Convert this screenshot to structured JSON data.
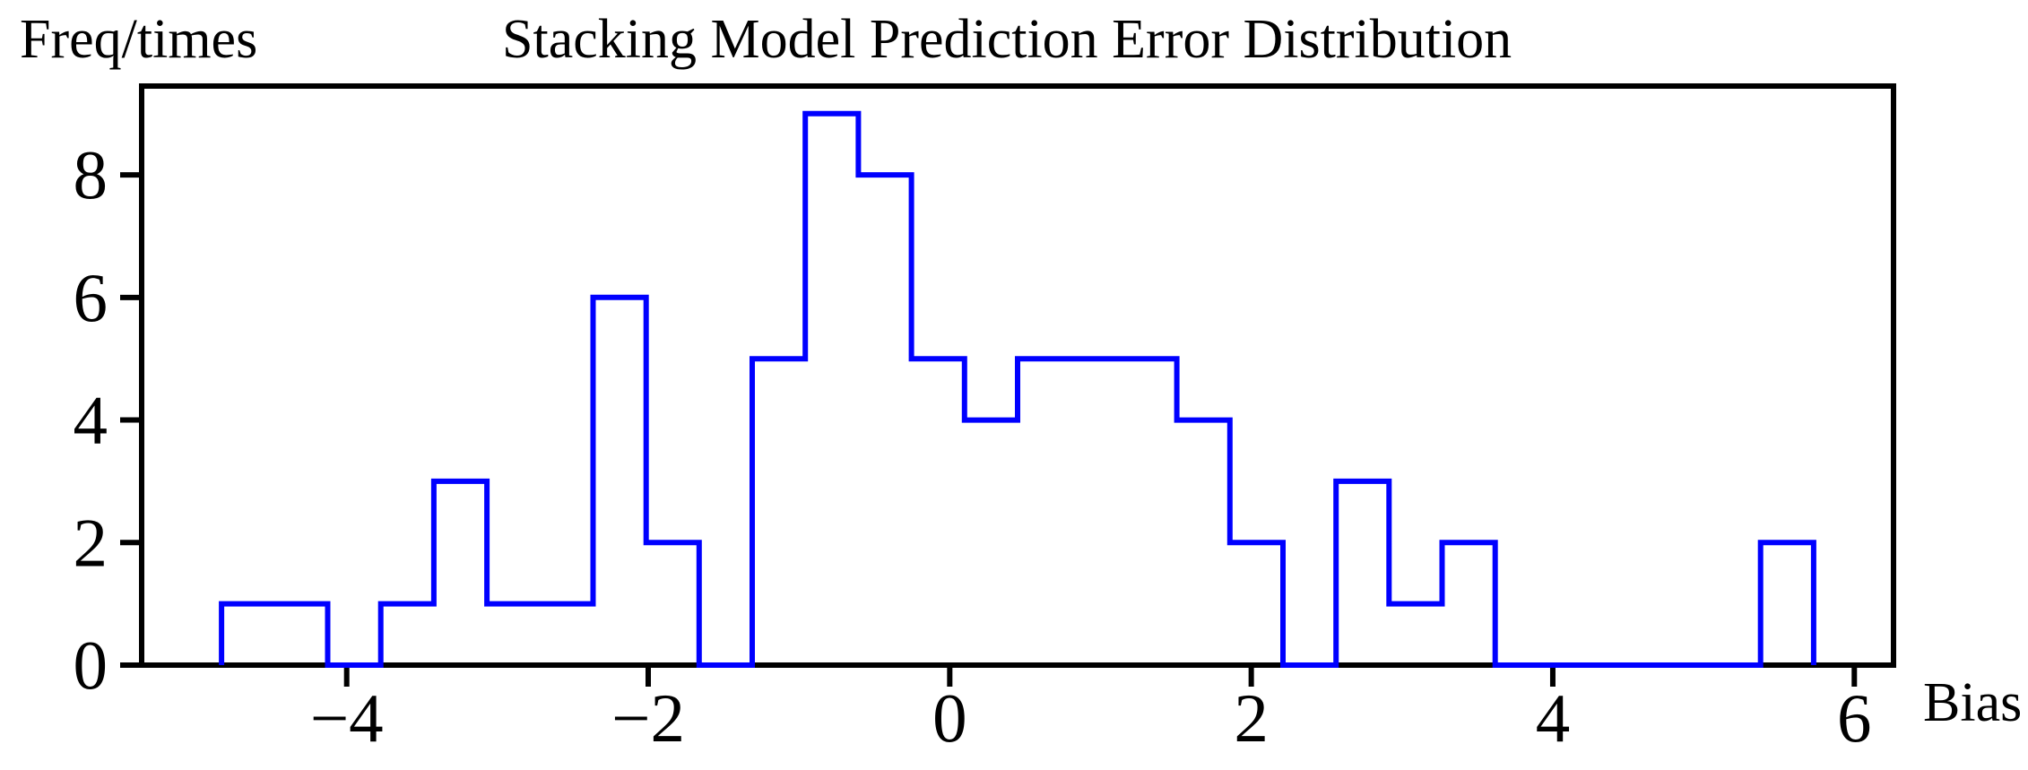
{
  "labels": {
    "title": "Stacking Model Prediction Error Distribution",
    "ylabel": "Freq/times",
    "xlabel": "Bias"
  },
  "colors": {
    "hist_line": "#0000FF",
    "axis": "#000000",
    "background": "#FFFFFF",
    "text": "#000000"
  },
  "chart_data": {
    "type": "histogram-step",
    "title": "Stacking Model Prediction Error Distribution",
    "xlabel": "Bias",
    "ylabel": "Freq/times",
    "bin_edges": [
      -4.83,
      -4.478,
      -4.126,
      -3.774,
      -3.422,
      -3.07,
      -2.718,
      -2.366,
      -2.014,
      -1.662,
      -1.31,
      -0.958,
      -0.606,
      -0.254,
      0.098,
      0.45,
      0.802,
      1.154,
      1.506,
      1.858,
      2.21,
      2.562,
      2.914,
      3.266,
      3.618,
      3.97,
      4.322,
      4.674,
      5.026,
      5.378,
      5.73
    ],
    "counts": [
      1,
      1,
      0,
      1,
      3,
      1,
      1,
      6,
      2,
      0,
      5,
      9,
      8,
      5,
      4,
      5,
      5,
      5,
      4,
      2,
      0,
      3,
      1,
      2,
      0,
      0,
      0,
      0,
      0,
      2
    ],
    "x_ticks": [
      {
        "v": -4,
        "label": "−4"
      },
      {
        "v": -2,
        "label": "−2"
      },
      {
        "v": 0,
        "label": "0"
      },
      {
        "v": 2,
        "label": "2"
      },
      {
        "v": 4,
        "label": "4"
      },
      {
        "v": 6,
        "label": "6"
      }
    ],
    "y_ticks": [
      {
        "v": 0,
        "label": "0"
      },
      {
        "v": 2,
        "label": "2"
      },
      {
        "v": 4,
        "label": "4"
      },
      {
        "v": 6,
        "label": "6"
      },
      {
        "v": 8,
        "label": "8"
      }
    ],
    "xlim": [
      -5.36,
      6.26
    ],
    "ylim": [
      0,
      9.45
    ],
    "grid": false,
    "legend": null
  }
}
